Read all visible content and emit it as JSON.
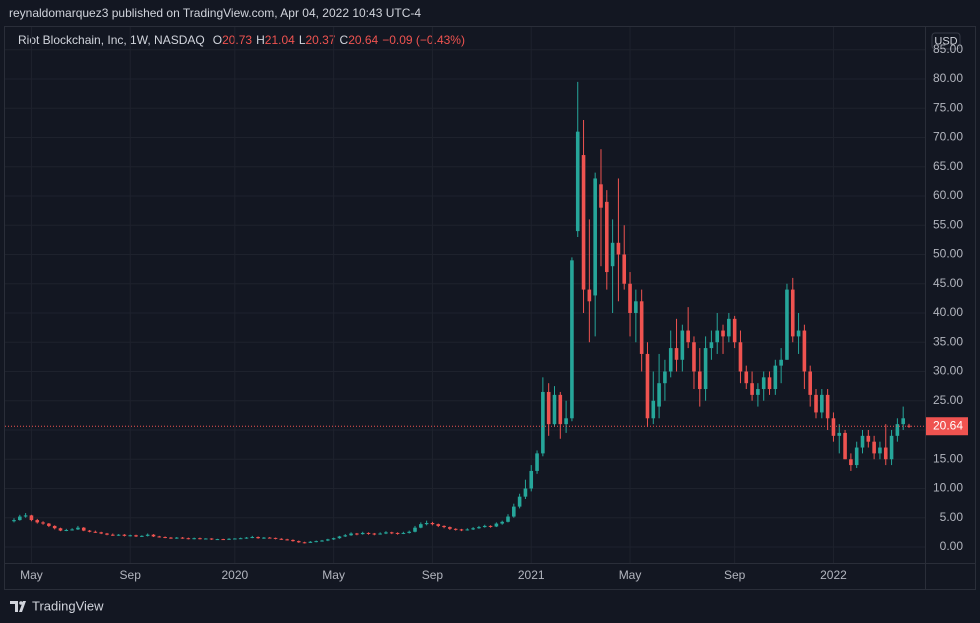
{
  "header": "reynaldomarquez3 published on TradingView.com, Apr 04, 2022 10:43 UTC-4",
  "footer": "TradingView",
  "chart_data": {
    "type": "candlestick",
    "symbol": "Riot Blockchain, Inc, 1W, NASDAQ",
    "ohlc_labels": [
      "O",
      "H",
      "L",
      "C"
    ],
    "change": "−0.09 (−0.43%)",
    "currency": "USD",
    "up_color": "#26a69a",
    "down_color": "#ef5350",
    "grid": true,
    "ylim": [
      -2.74,
      88.72
    ],
    "yticks": [
      {
        "value": 0,
        "label": "0.00"
      },
      {
        "value": 5,
        "label": "5.00"
      },
      {
        "value": 10,
        "label": "10.00"
      },
      {
        "value": 15,
        "label": "15.00"
      },
      {
        "value": 20,
        "label": "20.00"
      },
      {
        "value": 25,
        "label": "25.00"
      },
      {
        "value": 30,
        "label": "30.00"
      },
      {
        "value": 35,
        "label": "35.00"
      },
      {
        "value": 40,
        "label": "40.00"
      },
      {
        "value": 45,
        "label": "45.00"
      },
      {
        "value": 50,
        "label": "50.00"
      },
      {
        "value": 55,
        "label": "55.00"
      },
      {
        "value": 60,
        "label": "60.00"
      },
      {
        "value": 65,
        "label": "65.00"
      },
      {
        "value": 70,
        "label": "70.00"
      },
      {
        "value": 75,
        "label": "75.00"
      },
      {
        "value": 80,
        "label": "80.00"
      },
      {
        "value": 85,
        "label": "85.00"
      }
    ],
    "categories": [
      null,
      null,
      null,
      "May",
      null,
      null,
      null,
      null,
      null,
      null,
      null,
      null,
      null,
      null,
      null,
      null,
      null,
      null,
      null,
      null,
      "Sep",
      null,
      null,
      null,
      null,
      null,
      null,
      null,
      null,
      null,
      null,
      null,
      null,
      null,
      null,
      null,
      null,
      null,
      "2020",
      null,
      null,
      null,
      null,
      null,
      null,
      null,
      null,
      null,
      null,
      null,
      null,
      null,
      null,
      null,
      null,
      "May",
      null,
      null,
      null,
      null,
      null,
      null,
      null,
      null,
      null,
      null,
      null,
      null,
      null,
      null,
      null,
      null,
      "Sep",
      null,
      null,
      null,
      null,
      null,
      null,
      null,
      null,
      null,
      null,
      null,
      null,
      null,
      null,
      null,
      null,
      "2021",
      null,
      null,
      null,
      null,
      null,
      null,
      null,
      null,
      null,
      null,
      null,
      null,
      null,
      null,
      null,
      null,
      "May",
      null,
      null,
      null,
      null,
      null,
      null,
      null,
      null,
      null,
      null,
      null,
      null,
      null,
      null,
      null,
      null,
      null,
      "Sep",
      null,
      null,
      null,
      null,
      null,
      null,
      null,
      null,
      null,
      null,
      null,
      null,
      null,
      null,
      null,
      null,
      "2022",
      null,
      null,
      null,
      null,
      null,
      null,
      null,
      null,
      null,
      null,
      null,
      null,
      null
    ],
    "ohlc": [
      [
        4.4,
        4.9,
        4.2,
        4.6
      ],
      [
        4.6,
        5.5,
        4.5,
        5.2
      ],
      [
        5.2,
        5.8,
        5.0,
        5.4
      ],
      [
        5.4,
        5.5,
        4.4,
        4.6
      ],
      [
        4.6,
        4.8,
        4.0,
        4.2
      ],
      [
        4.2,
        4.4,
        3.8,
        4.0
      ],
      [
        4.0,
        4.1,
        3.4,
        3.6
      ],
      [
        3.6,
        3.7,
        3.0,
        3.2
      ],
      [
        3.2,
        3.3,
        2.7,
        2.8
      ],
      [
        2.8,
        3.1,
        2.7,
        2.9
      ],
      [
        2.9,
        3.2,
        2.8,
        3.0
      ],
      [
        3.0,
        3.6,
        2.9,
        3.3
      ],
      [
        3.3,
        3.4,
        2.7,
        2.8
      ],
      [
        2.8,
        2.9,
        2.5,
        2.6
      ],
      [
        2.6,
        2.8,
        2.4,
        2.5
      ],
      [
        2.5,
        2.6,
        2.2,
        2.3
      ],
      [
        2.3,
        2.4,
        2.0,
        2.1
      ],
      [
        2.1,
        2.3,
        1.9,
        2.0
      ],
      [
        2.0,
        2.2,
        1.9,
        2.1
      ],
      [
        2.1,
        2.2,
        1.8,
        1.9
      ],
      [
        1.9,
        2.1,
        1.8,
        2.0
      ],
      [
        2.0,
        2.1,
        1.7,
        1.8
      ],
      [
        1.8,
        2.0,
        1.7,
        1.9
      ],
      [
        1.9,
        2.3,
        1.8,
        2.1
      ],
      [
        2.1,
        2.2,
        1.7,
        1.8
      ],
      [
        1.8,
        1.9,
        1.6,
        1.7
      ],
      [
        1.7,
        1.8,
        1.5,
        1.6
      ],
      [
        1.6,
        1.7,
        1.4,
        1.5
      ],
      [
        1.5,
        1.7,
        1.4,
        1.6
      ],
      [
        1.6,
        1.7,
        1.4,
        1.5
      ],
      [
        1.5,
        1.6,
        1.3,
        1.4
      ],
      [
        1.4,
        1.6,
        1.3,
        1.5
      ],
      [
        1.5,
        1.6,
        1.3,
        1.4
      ],
      [
        1.4,
        1.5,
        1.3,
        1.45
      ],
      [
        1.45,
        1.5,
        1.2,
        1.3
      ],
      [
        1.3,
        1.4,
        1.2,
        1.35
      ],
      [
        1.35,
        1.4,
        1.2,
        1.3
      ],
      [
        1.3,
        1.5,
        1.2,
        1.4
      ],
      [
        1.4,
        1.5,
        1.3,
        1.45
      ],
      [
        1.45,
        1.6,
        1.4,
        1.5
      ],
      [
        1.5,
        1.7,
        1.4,
        1.6
      ],
      [
        1.6,
        1.9,
        1.5,
        1.7
      ],
      [
        1.7,
        1.8,
        1.4,
        1.5
      ],
      [
        1.5,
        1.7,
        1.4,
        1.6
      ],
      [
        1.6,
        1.7,
        1.5,
        1.55
      ],
      [
        1.55,
        1.6,
        1.3,
        1.4
      ],
      [
        1.4,
        1.5,
        1.2,
        1.3
      ],
      [
        1.3,
        1.4,
        1.1,
        1.2
      ],
      [
        1.2,
        1.3,
        0.9,
        1.0
      ],
      [
        1.0,
        1.1,
        0.7,
        0.8
      ],
      [
        0.8,
        0.9,
        0.6,
        0.7
      ],
      [
        0.7,
        1.0,
        0.7,
        0.9
      ],
      [
        0.9,
        1.1,
        0.8,
        1.0
      ],
      [
        1.0,
        1.2,
        0.9,
        1.1
      ],
      [
        1.1,
        1.4,
        1.0,
        1.3
      ],
      [
        1.3,
        1.6,
        1.2,
        1.5
      ],
      [
        1.5,
        1.9,
        1.4,
        1.8
      ],
      [
        1.8,
        2.2,
        1.7,
        2.0
      ],
      [
        2.0,
        2.5,
        1.9,
        2.3
      ],
      [
        2.3,
        2.4,
        2.0,
        2.2
      ],
      [
        2.2,
        2.6,
        2.1,
        2.4
      ],
      [
        2.4,
        2.5,
        2.1,
        2.3
      ],
      [
        2.3,
        2.4,
        2.0,
        2.2
      ],
      [
        2.2,
        2.5,
        2.1,
        2.3
      ],
      [
        2.3,
        2.7,
        2.2,
        2.5
      ],
      [
        2.5,
        2.6,
        2.2,
        2.4
      ],
      [
        2.4,
        2.5,
        2.1,
        2.3
      ],
      [
        2.3,
        2.6,
        2.2,
        2.4
      ],
      [
        2.4,
        2.8,
        2.3,
        2.6
      ],
      [
        2.6,
        3.6,
        2.5,
        3.3
      ],
      [
        3.3,
        4.2,
        3.2,
        3.9
      ],
      [
        3.9,
        4.5,
        3.7,
        4.1
      ],
      [
        4.1,
        4.3,
        3.7,
        3.9
      ],
      [
        3.9,
        4.0,
        3.4,
        3.6
      ],
      [
        3.6,
        3.7,
        3.2,
        3.4
      ],
      [
        3.4,
        3.5,
        2.9,
        3.1
      ],
      [
        3.1,
        3.2,
        2.8,
        3.0
      ],
      [
        3.0,
        3.1,
        2.7,
        2.9
      ],
      [
        2.9,
        3.2,
        2.8,
        3.0
      ],
      [
        3.0,
        3.4,
        2.9,
        3.2
      ],
      [
        3.2,
        3.6,
        3.1,
        3.4
      ],
      [
        3.4,
        3.8,
        3.3,
        3.6
      ],
      [
        3.6,
        3.7,
        3.3,
        3.5
      ],
      [
        3.5,
        4.2,
        3.4,
        4.0
      ],
      [
        4.0,
        4.5,
        3.8,
        4.3
      ],
      [
        4.3,
        5.6,
        4.2,
        5.2
      ],
      [
        5.2,
        7.4,
        5.0,
        6.9
      ],
      [
        6.9,
        9.1,
        6.6,
        8.6
      ],
      [
        8.6,
        11.5,
        8.2,
        10.0
      ],
      [
        10.0,
        14.0,
        9.5,
        13.0
      ],
      [
        13.0,
        16.5,
        12.5,
        16.0
      ],
      [
        16.0,
        29.0,
        15.5,
        26.5
      ],
      [
        26.5,
        28.0,
        19.0,
        21.0
      ],
      [
        21.0,
        27.5,
        20.5,
        26.0
      ],
      [
        26.0,
        26.5,
        18.5,
        21.0
      ],
      [
        21.0,
        25.0,
        19.5,
        22.0
      ],
      [
        22.0,
        49.5,
        21.5,
        49.0
      ],
      [
        54.0,
        79.5,
        53.0,
        71.0
      ],
      [
        67.0,
        73.0,
        40.0,
        44.0
      ],
      [
        44.0,
        56.0,
        35.0,
        42.0
      ],
      [
        43.0,
        64.0,
        36.0,
        63.0
      ],
      [
        62.0,
        68.0,
        48.0,
        58.0
      ],
      [
        59.0,
        61.0,
        44.0,
        47.0
      ],
      [
        48.0,
        56.0,
        40.0,
        52.0
      ],
      [
        52.0,
        63.0,
        42.0,
        50.0
      ],
      [
        50.0,
        55.0,
        44.0,
        45.0
      ],
      [
        45.0,
        47.0,
        36.0,
        40.0
      ],
      [
        40.0,
        44.0,
        35.0,
        42.0
      ],
      [
        42.0,
        44.0,
        30.0,
        33.0
      ],
      [
        33.0,
        35.0,
        20.5,
        22.0
      ],
      [
        22.0,
        30.0,
        21.0,
        25.0
      ],
      [
        24.0,
        33.0,
        22.0,
        28.0
      ],
      [
        28.0,
        32.0,
        25.0,
        30.0
      ],
      [
        30.0,
        37.0,
        29.0,
        34.0
      ],
      [
        34.0,
        39.0,
        30.0,
        32.0
      ],
      [
        32.0,
        38.0,
        30.0,
        37.0
      ],
      [
        37.0,
        41.0,
        34.0,
        35.0
      ],
      [
        35.0,
        36.0,
        27.0,
        30.0
      ],
      [
        30.0,
        34.0,
        24.0,
        27.0
      ],
      [
        27.0,
        36.0,
        25.0,
        34.0
      ],
      [
        34.0,
        37.0,
        32.0,
        35.0
      ],
      [
        35.0,
        40.0,
        33.0,
        37.0
      ],
      [
        37.0,
        38.0,
        33.0,
        36.0
      ],
      [
        36.0,
        40.0,
        35.0,
        39.0
      ],
      [
        39.0,
        39.5,
        34.0,
        35.0
      ],
      [
        35.0,
        37.0,
        28.0,
        30.0
      ],
      [
        30.0,
        31.0,
        27.0,
        28.0
      ],
      [
        28.0,
        30.0,
        25.0,
        26.0
      ],
      [
        26.0,
        28.0,
        24.0,
        27.0
      ],
      [
        27.0,
        30.0,
        25.0,
        29.0
      ],
      [
        29.0,
        30.0,
        26.0,
        27.0
      ],
      [
        27.0,
        32.0,
        26.0,
        31.0
      ],
      [
        31.0,
        34.0,
        28.0,
        32.0
      ],
      [
        32.0,
        45.0,
        32.0,
        44.0
      ],
      [
        44.0,
        46.0,
        35.0,
        36.0
      ],
      [
        36.0,
        40.0,
        33.0,
        37.0
      ],
      [
        37.0,
        38.0,
        27.0,
        30.0
      ],
      [
        30.0,
        31.0,
        24.0,
        26.0
      ],
      [
        26.0,
        27.0,
        22.0,
        23.0
      ],
      [
        23.0,
        27.0,
        22.0,
        26.0
      ],
      [
        26.0,
        27.0,
        20.0,
        22.0
      ],
      [
        22.0,
        23.0,
        18.0,
        19.0
      ],
      [
        19.0,
        21.0,
        16.0,
        19.5
      ],
      [
        19.5,
        20.0,
        15.0,
        15.0
      ],
      [
        15.0,
        16.0,
        13.0,
        14.0
      ],
      [
        14.0,
        18.0,
        13.5,
        17.0
      ],
      [
        17.0,
        20.0,
        16.0,
        19.0
      ],
      [
        19.0,
        20.0,
        17.0,
        18.0
      ],
      [
        18.0,
        19.0,
        15.0,
        16.0
      ],
      [
        16.0,
        18.0,
        15.0,
        17.0
      ],
      [
        17.0,
        21.0,
        14.0,
        15.0
      ],
      [
        15.0,
        20.0,
        14.0,
        19.0
      ],
      [
        19.0,
        22.0,
        18.0,
        21.0
      ],
      [
        21.0,
        24.0,
        20.0,
        22.0
      ],
      [
        20.73,
        21.04,
        20.37,
        20.64
      ]
    ]
  }
}
